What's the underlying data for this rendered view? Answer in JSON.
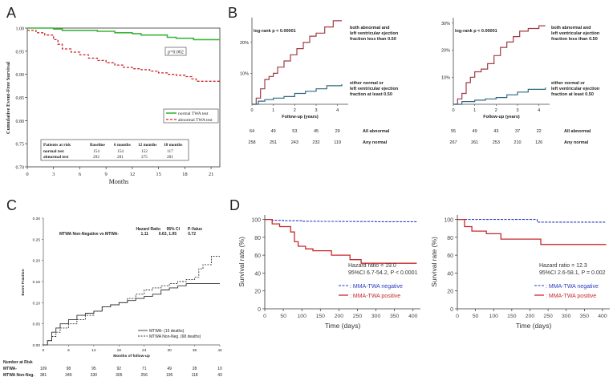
{
  "panels": {
    "A": {
      "letter": "A",
      "ylabel": "Cumulative Event-Free Survival",
      "xlabel": "Months",
      "pvalue": "p=0.002",
      "yticks": [
        "1.00",
        "0.95",
        "0.90",
        "0.85",
        "0.80",
        "0.75",
        "0.70"
      ],
      "xticks": [
        "0",
        "3",
        "6",
        "9",
        "12",
        "15",
        "18",
        "21"
      ],
      "legend": [
        "normal TWA test",
        "abnormal TWA test"
      ],
      "risk_header": [
        "Patients at risk",
        "Baseline",
        "6 months",
        "12 months",
        "18 months"
      ],
      "risk_rows": [
        {
          "label": "normal test",
          "values": [
            "154",
            "154",
            "152",
            "117"
          ]
        },
        {
          "label": "abnormal test",
          "values": [
            "292",
            "281",
            "275",
            "201"
          ]
        }
      ]
    },
    "B": {
      "letter": "B",
      "left": {
        "logrank": "log-rank p < 0.00001",
        "label_top": [
          "both abnormal and",
          "left ventricular ejection",
          "fraction less than 0.50"
        ],
        "label_bottom": [
          "either normal or",
          "left ventricular ejection",
          "fraction at least 0.50"
        ],
        "yticks": [
          "20%",
          "10%"
        ],
        "xticks": [
          "0",
          "1",
          "2",
          "3",
          "4"
        ],
        "xlabel": "Follow-up (years)",
        "risk_rows": [
          {
            "label": "All abnormal",
            "values": [
              "64",
              "49",
              "53",
              "45",
              "29"
            ]
          },
          {
            "label": "Any normal",
            "values": [
              "258",
              "251",
              "243",
              "232",
              "119"
            ]
          }
        ]
      },
      "right": {
        "logrank": "log-rank p < 0.00001",
        "label_top": [
          "both abnormal and",
          "left ventricular ejection",
          "fraction less than 0.50"
        ],
        "label_bottom": [
          "either normal or",
          "left ventricular ejection",
          "fraction at least 0.50"
        ],
        "yticks": [
          "30%",
          "20%",
          "10%"
        ],
        "xticks": [
          "0",
          "1",
          "2",
          "3",
          "4"
        ],
        "xlabel": "Follow-up (years)",
        "risk_rows": [
          {
            "label": "All abnormal",
            "values": [
              "55",
              "49",
              "43",
              "37",
              "22"
            ]
          },
          {
            "label": "Any normal",
            "values": [
              "267",
              "261",
              "253",
              "210",
              "126"
            ]
          }
        ]
      }
    },
    "C": {
      "letter": "C",
      "ylabel": "Event Fraction",
      "xlabel": "Months of follow-up",
      "yticks": [
        "0.30",
        "0.25",
        "0.20",
        "0.15",
        "0.10",
        "0.05",
        "0.00"
      ],
      "xticks": [
        "0",
        "6",
        "12",
        "18",
        "24",
        "30",
        "36",
        "42"
      ],
      "hr_header": [
        "Hazard Ratio",
        "95% CI",
        "P-Value"
      ],
      "hr_row": {
        "label": "MTWA Non-Negative vs MTWA-",
        "hr": "1.11",
        "ci": "0.63, 1.95",
        "p": "0.72"
      },
      "legend": [
        "MTWA- (15 deaths)",
        "MTWA Non-Neg. (68 deaths)"
      ],
      "risk_title": "Number at Risk",
      "risk_rows": [
        {
          "label": "MTWA-",
          "values": [
            "109",
            "98",
            "95",
            "92",
            "71",
            "49",
            "28",
            "10"
          ]
        },
        {
          "label": "MTWA Non-Neg.",
          "values": [
            "381",
            "349",
            "330",
            "305",
            "256",
            "195",
            "118",
            "43"
          ]
        }
      ]
    },
    "D": {
      "letter": "D",
      "left": {
        "ylabel": "Survival rate (%)",
        "xlabel": "Time (days)",
        "yticks": [
          "100",
          "80",
          "60",
          "40",
          "20",
          "0"
        ],
        "xticks": [
          "0",
          "50",
          "100",
          "150",
          "200",
          "250",
          "300",
          "350",
          "400"
        ],
        "hr": "Hazard ratio = 19.0",
        "ci": "95%CI 6.7-54.2, P < 0.0001",
        "legend": [
          ": MMA-TWA negative",
          ": MMA-TWA positive"
        ]
      },
      "right": {
        "ylabel": "Survival rate (%)",
        "xlabel": "Time (days)",
        "yticks": [
          "100",
          "80",
          "60",
          "40",
          "20",
          "0"
        ],
        "xticks": [
          "0",
          "50",
          "100",
          "150",
          "200",
          "250",
          "300",
          "350",
          "400"
        ],
        "hr": "Hazard ratio = 12.3",
        "ci": "95%CI 2.6-58.1, P = 0.002",
        "legend": [
          ": MMA-TWA negative",
          ": MMA-TWA positive"
        ]
      }
    }
  },
  "colors": {
    "green": "#3cb43c",
    "red": "#c8282c",
    "maroon": "#a03c46",
    "teal": "#2f6a80",
    "blue": "#2a3dbd",
    "gray": "#555555"
  },
  "chart_data": [
    {
      "panel": "A",
      "type": "line",
      "xlabel": "Months",
      "ylabel": "Cumulative Event-Free Survival",
      "xlim": [
        0,
        22
      ],
      "ylim": [
        0.7,
        1.0
      ],
      "series": [
        {
          "name": "normal TWA test",
          "x": [
            0,
            2,
            3,
            4,
            8,
            10,
            12,
            13,
            16,
            17,
            19,
            22
          ],
          "y": [
            1.0,
            1.0,
            0.998,
            0.995,
            0.993,
            0.99,
            0.988,
            0.985,
            0.98,
            0.978,
            0.975,
            0.975
          ]
        },
        {
          "name": "abnormal TWA test",
          "x": [
            0,
            1,
            2,
            3,
            3.5,
            4,
            5,
            6,
            7,
            8,
            9,
            10,
            11,
            12,
            13,
            14,
            15,
            16,
            17,
            18,
            18.8,
            19.3,
            20,
            21,
            22
          ],
          "y": [
            0.995,
            0.99,
            0.985,
            0.975,
            0.965,
            0.955,
            0.948,
            0.942,
            0.935,
            0.93,
            0.925,
            0.92,
            0.915,
            0.912,
            0.91,
            0.907,
            0.903,
            0.9,
            0.898,
            0.895,
            0.89,
            0.885,
            0.885,
            0.885,
            0.885
          ]
        }
      ]
    },
    {
      "panel": "B-left",
      "type": "line",
      "xlabel": "Follow-up (years)",
      "xlim": [
        0,
        4.5
      ],
      "ylim": [
        0,
        28
      ],
      "series": [
        {
          "name": "both abnormal and left ventricular ejection fraction less than 0.50",
          "x": [
            0,
            0.2,
            0.4,
            0.6,
            0.8,
            1.0,
            1.2,
            1.5,
            1.8,
            2.1,
            2.4,
            2.7,
            3.0,
            3.4,
            3.8,
            4.2
          ],
          "y": [
            0,
            2,
            5,
            8,
            9,
            10,
            12,
            14,
            16,
            18,
            20,
            22,
            23,
            25,
            27,
            27
          ]
        },
        {
          "name": "either normal or left ventricular ejection fraction at least 0.50",
          "x": [
            0,
            0.3,
            0.6,
            1.0,
            1.5,
            2.0,
            2.5,
            3.0,
            3.5,
            4.2
          ],
          "y": [
            0,
            1,
            1.5,
            2,
            2.5,
            3.5,
            4.2,
            5,
            6,
            6.5
          ]
        }
      ]
    },
    {
      "panel": "B-right",
      "type": "line",
      "xlabel": "Follow-up (years)",
      "xlim": [
        0,
        4.5
      ],
      "ylim": [
        0,
        32
      ],
      "series": [
        {
          "name": "both abnormal and left ventricular ejection fraction less than 0.50",
          "x": [
            0,
            0.2,
            0.4,
            0.6,
            0.8,
            1.0,
            1.3,
            1.6,
            1.9,
            2.2,
            2.5,
            2.8,
            3.1,
            3.5,
            4.0,
            4.3
          ],
          "y": [
            0,
            2,
            4,
            8,
            10,
            12,
            13,
            15,
            18,
            21,
            23,
            25,
            27,
            28,
            29,
            29
          ]
        },
        {
          "name": "either normal or left ventricular ejection fraction at least 0.50",
          "x": [
            0,
            0.4,
            1.0,
            1.5,
            2.0,
            2.5,
            3.0,
            3.5,
            4.3
          ],
          "y": [
            0,
            1,
            1.5,
            2,
            2.5,
            3.5,
            4.5,
            5.5,
            6.2
          ]
        }
      ]
    },
    {
      "panel": "C",
      "type": "line",
      "xlabel": "Months of follow-up",
      "ylabel": "Event Fraction",
      "xlim": [
        0,
        42
      ],
      "ylim": [
        0,
        0.3
      ],
      "series": [
        {
          "name": "MTWA- (15 deaths)",
          "x": [
            0,
            1,
            2,
            3,
            4,
            6,
            8,
            10,
            12,
            14,
            16,
            18,
            20,
            22,
            24,
            26,
            28,
            30,
            32,
            34,
            36,
            38,
            40,
            42
          ],
          "y": [
            0,
            0.01,
            0.03,
            0.04,
            0.05,
            0.06,
            0.07,
            0.075,
            0.08,
            0.09,
            0.095,
            0.1,
            0.105,
            0.11,
            0.115,
            0.12,
            0.13,
            0.135,
            0.14,
            0.145,
            0.145,
            0.145,
            0.145,
            0.145
          ]
        },
        {
          "name": "MTWA Non-Neg. (68 deaths)",
          "x": [
            0,
            1,
            2,
            3,
            4,
            6,
            8,
            10,
            12,
            14,
            16,
            18,
            20,
            22,
            24,
            26,
            28,
            30,
            32,
            34,
            36,
            37,
            38,
            40,
            42
          ],
          "y": [
            0,
            0.01,
            0.02,
            0.03,
            0.04,
            0.05,
            0.06,
            0.07,
            0.08,
            0.09,
            0.095,
            0.1,
            0.11,
            0.12,
            0.13,
            0.135,
            0.14,
            0.145,
            0.15,
            0.155,
            0.16,
            0.18,
            0.19,
            0.21,
            0.21
          ]
        }
      ]
    },
    {
      "panel": "D-left",
      "type": "line",
      "xlabel": "Time (days)",
      "ylabel": "Survival rate (%)",
      "xlim": [
        0,
        420
      ],
      "ylim": [
        0,
        105
      ],
      "series": [
        {
          "name": "MMA-TWA negative",
          "x": [
            0,
            20,
            50,
            100,
            150,
            200,
            250,
            300,
            350,
            410
          ],
          "y": [
            100,
            99,
            98.5,
            98,
            97.8,
            97.7,
            97.6,
            97.5,
            97.5,
            97.5
          ]
        },
        {
          "name": "MMA-TWA positive",
          "x": [
            0,
            20,
            40,
            70,
            80,
            90,
            110,
            130,
            180,
            230,
            260,
            300,
            350,
            410
          ],
          "y": [
            100,
            95,
            92,
            86,
            75,
            70,
            67,
            65,
            60,
            55,
            51,
            51,
            51,
            51
          ]
        }
      ]
    },
    {
      "panel": "D-right",
      "type": "line",
      "xlabel": "Time (days)",
      "ylabel": "Survival rate (%)",
      "xlim": [
        0,
        420
      ],
      "ylim": [
        0,
        105
      ],
      "series": [
        {
          "name": "MMA-TWA negative",
          "x": [
            0,
            100,
            200,
            220,
            300,
            410
          ],
          "y": [
            100,
            100,
            100,
            97,
            97,
            97
          ]
        },
        {
          "name": "MMA-TWA positive",
          "x": [
            0,
            20,
            40,
            80,
            120,
            160,
            230,
            300,
            410
          ],
          "y": [
            100,
            92,
            87,
            84,
            78,
            78,
            72,
            72,
            72
          ]
        }
      ]
    }
  ]
}
